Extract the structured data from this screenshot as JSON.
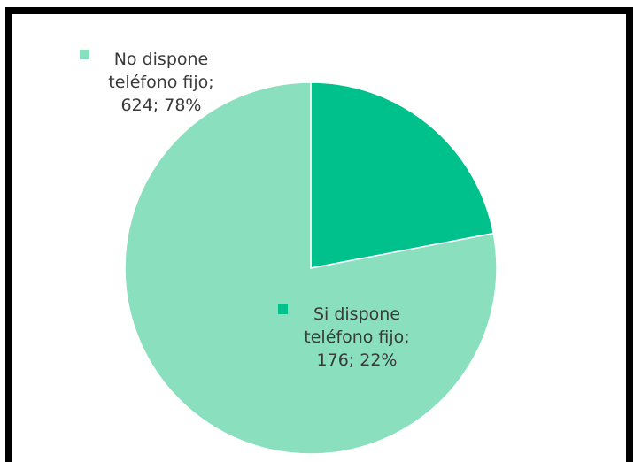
{
  "chart_data": {
    "type": "pie",
    "title": "",
    "slices": [
      {
        "name": "Si dispone teléfono fijo",
        "value": 176,
        "percent": "22%",
        "color": "#00c08b",
        "label_lines": [
          "Si dispone",
          "teléfono fijo;",
          "176; 22%"
        ]
      },
      {
        "name": "No dispone teléfono fijo",
        "value": 624,
        "percent": "78%",
        "color": "#8ae0be",
        "label_lines": [
          "No dispone",
          "teléfono fijo;",
          "624; 78%"
        ]
      }
    ],
    "start_angle_deg": 0,
    "direction": "clockwise",
    "edge_color": "#ffffff"
  }
}
